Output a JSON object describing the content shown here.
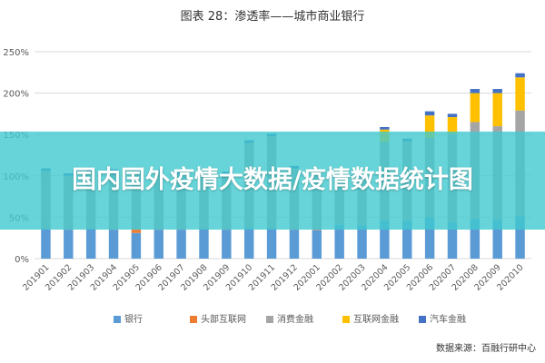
{
  "page": {
    "overlay_title": "国内国外疫情大数据/疫情数据统计图",
    "source_note": "数据来源：百融行研中心"
  },
  "colors": {
    "bank": "#5b9bd5",
    "head_internet": "#ed7d31",
    "consumer_finance": "#a5a5a5",
    "internet_finance": "#ffc000",
    "auto_finance": "#4472c4",
    "grid": "#d9d9d9",
    "overlay": "#40c9ce"
  },
  "chart_data": {
    "type": "bar",
    "stacked": true,
    "title": "图表 28：渗透率——城市商业银行",
    "xlabel": "",
    "ylabel": "",
    "ylim": [
      0,
      250
    ],
    "yticks": [
      "0%",
      "50%",
      "100%",
      "150%",
      "200%",
      "250%"
    ],
    "grid": true,
    "legend_position": "bottom",
    "categories": [
      "201901",
      "201902",
      "201903",
      "201904",
      "201905",
      "201906",
      "201907",
      "201908",
      "201909",
      "201910",
      "201911",
      "201912",
      "202001",
      "202002",
      "202003",
      "202004",
      "202005",
      "202006",
      "202007",
      "202008",
      "202009",
      "202010"
    ],
    "series": [
      {
        "name": "银行",
        "color_key": "bank",
        "values": [
          36,
          35,
          36,
          35,
          31,
          35,
          35,
          36,
          35,
          37,
          37,
          35,
          34,
          41,
          40,
          46,
          46,
          50,
          44,
          48,
          47,
          51
        ]
      },
      {
        "name": "头部互联网",
        "color_key": "head_internet",
        "values": [
          0,
          0,
          0,
          0,
          4,
          0,
          0,
          0,
          0,
          0,
          0,
          0,
          0,
          0,
          0,
          0,
          0,
          0,
          0,
          0,
          0,
          0
        ]
      },
      {
        "name": "消费金融",
        "color_key": "consumer_finance",
        "values": [
          70,
          65,
          69,
          70,
          67,
          69,
          67,
          66,
          67,
          103,
          111,
          74,
          71,
          50,
          58,
          95,
          96,
          96,
          107,
          117,
          113,
          128
        ]
      },
      {
        "name": "互联网金融",
        "color_key": "internet_finance",
        "values": [
          0,
          0,
          0,
          0,
          0,
          0,
          0,
          0,
          0,
          0,
          0,
          0,
          0,
          0,
          0,
          15,
          0,
          27,
          20,
          35,
          40,
          40
        ]
      },
      {
        "name": "汽车金融",
        "color_key": "auto_finance",
        "values": [
          3,
          3,
          3,
          3,
          3,
          3,
          3,
          3,
          3,
          3,
          3,
          3,
          3,
          3,
          3,
          3,
          3,
          5,
          4,
          5,
          5,
          5
        ]
      }
    ]
  }
}
